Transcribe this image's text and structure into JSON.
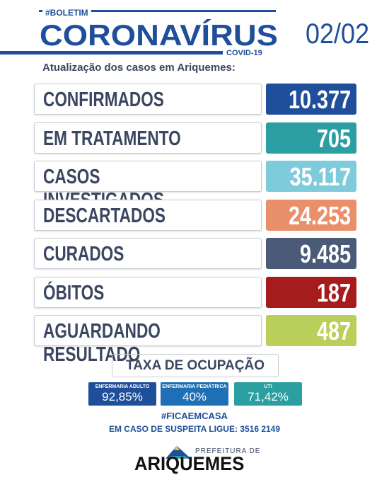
{
  "header": {
    "tag": "#BOLETIM",
    "title": "CORONAVÍRUS",
    "subtitle": "COVID-19",
    "date": "02/02",
    "intro": "Atualização dos casos em Ariquemes:"
  },
  "rows": [
    {
      "label": "CONFIRMADOS",
      "value": "10.377",
      "color": "#1f4e9a"
    },
    {
      "label": "EM TRATAMENTO",
      "value": "705",
      "color": "#2a9ea0"
    },
    {
      "label": "CASOS INVESTIGADOS",
      "value": "35.117",
      "color": "#7ecbdc"
    },
    {
      "label": "DESCARTADOS",
      "value": "24.253",
      "color": "#e9906a"
    },
    {
      "label": "CURADOS",
      "value": "9.485",
      "color": "#4a5a78"
    },
    {
      "label": "ÓBITOS",
      "value": "187",
      "color": "#a61c1c"
    },
    {
      "label": "AGUARDANDO RESULTADO",
      "value": "487",
      "color": "#b9cf5a"
    }
  ],
  "occupancy": {
    "title": "TAXA DE OCUPAÇÃO",
    "items": [
      {
        "label": "ENFERMARIA ADULTO",
        "value": "92,85%",
        "color": "#1f4e9a"
      },
      {
        "label": "ENFERMARIA PEDIÁTRICA",
        "value": "40%",
        "color": "#1f6fb5"
      },
      {
        "label": "UTI",
        "value": "71,42%",
        "color": "#2a9ea0"
      }
    ]
  },
  "footer": {
    "hashtag": "#FICAEMCASA",
    "phone": "EM CASO DE SUSPEITA LIGUE: 3516 2149",
    "logo_top": "PREFEITURA DE",
    "logo_name": "ARIQUEMES"
  }
}
